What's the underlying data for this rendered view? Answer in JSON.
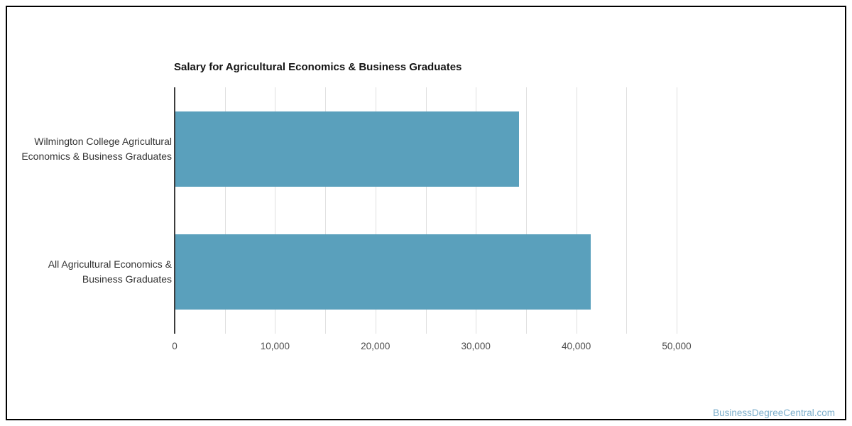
{
  "page": {
    "watermark": "BusinessDegreeCentral.com"
  },
  "colors": {
    "bar": "#5AA0BC",
    "gridline": "#e0e0e0",
    "axis_line": "#3d3d3d",
    "watermark": "#7BAECB"
  },
  "chart_data": {
    "type": "bar",
    "orientation": "horizontal",
    "title": "Salary for Agricultural Economics & Business Graduates",
    "categories": [
      "Wilmington College Agricultural Economics & Business Graduates",
      "All Agricultural Economics & Business Graduates"
    ],
    "category_label_lines": [
      [
        "Wilmington College Agricultural",
        "Economics & Business Graduates"
      ],
      [
        "All Agricultural Economics &",
        "Business Graduates"
      ]
    ],
    "values": [
      34250,
      41400
    ],
    "xlabel": "",
    "ylabel": "",
    "xlim": [
      0,
      50000
    ],
    "x_ticks": [
      0,
      10000,
      20000,
      30000,
      40000,
      50000
    ],
    "x_tick_labels": [
      "0",
      "10,000",
      "20,000",
      "30,000",
      "40,000",
      "50,000"
    ],
    "x_gridline_step": 5000,
    "grid": true,
    "legend": "none"
  }
}
